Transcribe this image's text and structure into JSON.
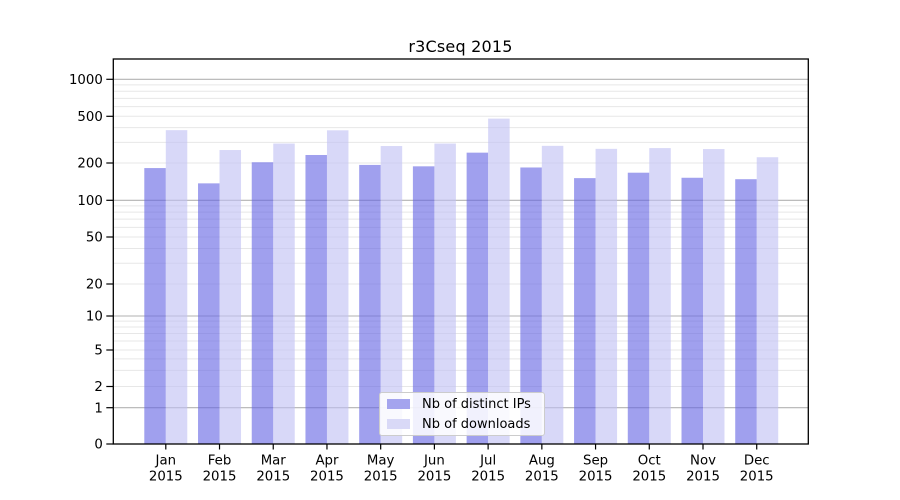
{
  "chart_data": {
    "type": "bar",
    "title": "r3Cseq 2015",
    "categories": [
      "Jan 2015",
      "Feb 2015",
      "Mar 2015",
      "Apr 2015",
      "May 2015",
      "Jun 2015",
      "Jul 2015",
      "Aug 2015",
      "Sep 2015",
      "Oct 2015",
      "Nov 2015",
      "Dec 2015"
    ],
    "series": [
      {
        "name": "Nb of distinct IPs",
        "color": "#6666e4",
        "fill_alpha": 0.62,
        "legend_swatch": "#a4a4ee",
        "values": [
          182,
          137,
          203,
          234,
          193,
          188,
          245,
          184,
          151,
          167,
          152,
          148
        ]
      },
      {
        "name": "Nb of downloads",
        "color": "#c0c0f4",
        "fill_alpha": 0.62,
        "legend_swatch": "#d9d9f7",
        "values": [
          381,
          258,
          293,
          380,
          279,
          293,
          478,
          280,
          264,
          268,
          263,
          224
        ]
      }
    ],
    "xlabel": "",
    "ylabel": "",
    "yscale": "symlog",
    "yticks": [
      0,
      1,
      2,
      5,
      10,
      20,
      50,
      100,
      200,
      500,
      1000
    ],
    "ylim": [
      0,
      1450
    ],
    "grid": true,
    "legend_position": "lower center",
    "axis_color": "#000000",
    "gridline_major_color": "#b2b2b2",
    "gridline_minor_color": "#e7e7e7",
    "plot_background": "#ffffff"
  }
}
